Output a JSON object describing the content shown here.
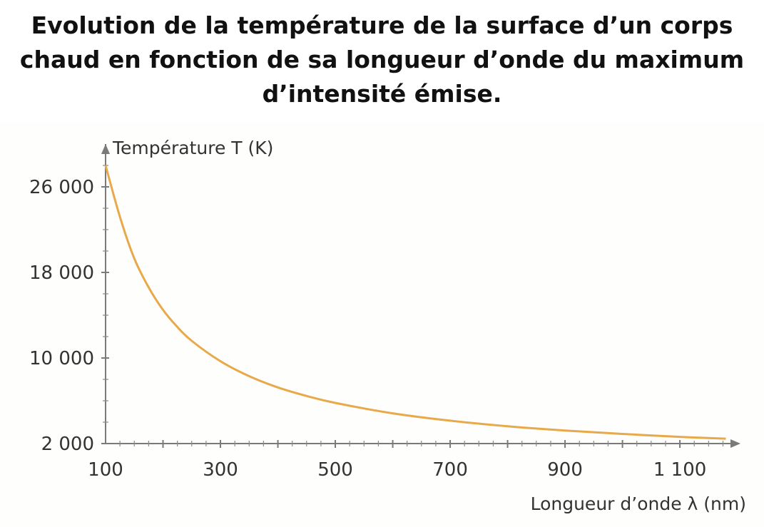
{
  "chart_data": {
    "type": "line",
    "title": "Evolution de la température de la surface d’un corps chaud en fonction de sa longueur d’onde du maximum d’intensité émise.",
    "xlabel": "Longueur d’onde λ (nm)",
    "ylabel": "Température T (K)",
    "x_ticks": [
      100,
      300,
      500,
      700,
      900,
      1100
    ],
    "x_tick_labels": [
      "100",
      "300",
      "500",
      "700",
      "900",
      "1 100"
    ],
    "y_ticks": [
      2000,
      10000,
      18000,
      26000
    ],
    "y_tick_labels": [
      "2 000",
      "10 000",
      "18 000",
      "26 000"
    ],
    "xlim": [
      100,
      1180
    ],
    "ylim": [
      2000,
      30000
    ],
    "grid": false,
    "series": [
      {
        "color": "#e8a94a",
        "x": [
          100,
          125,
          150,
          175,
          200,
          225,
          250,
          300,
          350,
          400,
          450,
          500,
          600,
          700,
          800,
          900,
          1000,
          1100,
          1180
        ],
        "y": [
          28000,
          23200,
          19300,
          16600,
          14500,
          12900,
          11600,
          9700,
          8300,
          7250,
          6450,
          5800,
          4830,
          4140,
          3620,
          3220,
          2900,
          2630,
          2460
        ]
      }
    ]
  }
}
